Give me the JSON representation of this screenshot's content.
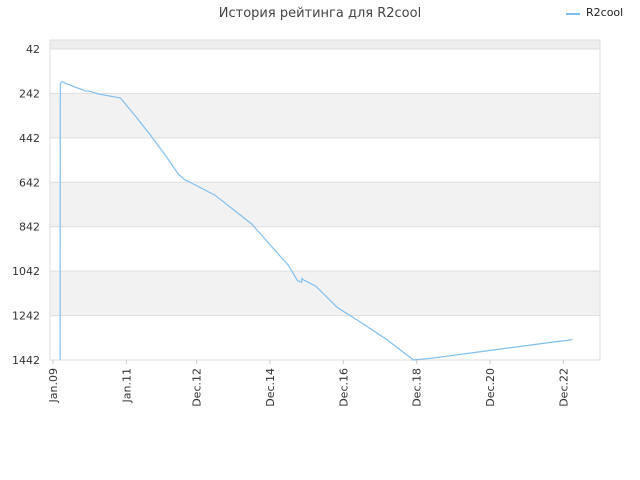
{
  "chart_data": {
    "type": "line",
    "title": "История рейтинга для R2cool",
    "xlabel": "",
    "ylabel": "",
    "y_inverted": true,
    "ylim": [
      42,
      1442
    ],
    "y_ticks": [
      "42",
      "242",
      "442",
      "642",
      "842",
      "1042",
      "1242",
      "1442"
    ],
    "x_ticks": [
      "Jan.09",
      "Jan.11",
      "Dec.12",
      "Dec.14",
      "Dec.16",
      "Dec.18",
      "Dec.20",
      "Dec.22"
    ],
    "x_tick_dates": [
      "2009-01",
      "2011-01",
      "2012-12",
      "2014-12",
      "2016-12",
      "2018-12",
      "2020-12",
      "2022-12"
    ],
    "xlim": [
      "2008-12",
      "2023-12"
    ],
    "grid": true,
    "legend_position": "top-right",
    "series": [
      {
        "name": "R2cool",
        "color": "#7fbfef",
        "points": [
          [
            "2009-03-10",
            1442
          ],
          [
            "2009-03-12",
            200
          ],
          [
            "2009-03-20",
            192
          ],
          [
            "2009-04-10",
            190
          ],
          [
            "2009-05-01",
            197
          ],
          [
            "2009-06-15",
            203
          ],
          [
            "2009-08-15",
            215
          ],
          [
            "2009-10-01",
            222
          ],
          [
            "2009-11-15",
            230
          ],
          [
            "2010-01-01",
            232
          ],
          [
            "2010-04-01",
            245
          ],
          [
            "2010-08-01",
            255
          ],
          [
            "2010-11-01",
            262
          ],
          [
            "2011-04-01",
            345
          ],
          [
            "2011-09-01",
            432
          ],
          [
            "2012-02-01",
            525
          ],
          [
            "2012-06-01",
            605
          ],
          [
            "2012-08-01",
            630
          ],
          [
            "2012-09-01",
            636
          ],
          [
            "2013-06-01",
            700
          ],
          [
            "2014-06-01",
            830
          ],
          [
            "2015-03-01",
            970
          ],
          [
            "2015-06-01",
            1015
          ],
          [
            "2015-09-01",
            1085
          ],
          [
            "2015-10-10",
            1092
          ],
          [
            "2015-10-15",
            1075
          ],
          [
            "2015-10-25",
            1080
          ],
          [
            "2016-03-01",
            1110
          ],
          [
            "2016-10-01",
            1205
          ],
          [
            "2017-06-01",
            1275
          ],
          [
            "2018-02-01",
            1348
          ],
          [
            "2018-11-01",
            1442
          ],
          [
            "2019-06-01",
            1432
          ],
          [
            "2020-06-01",
            1410
          ],
          [
            "2021-06-01",
            1388
          ],
          [
            "2022-06-01",
            1366
          ],
          [
            "2023-03-01",
            1350
          ]
        ]
      }
    ]
  }
}
